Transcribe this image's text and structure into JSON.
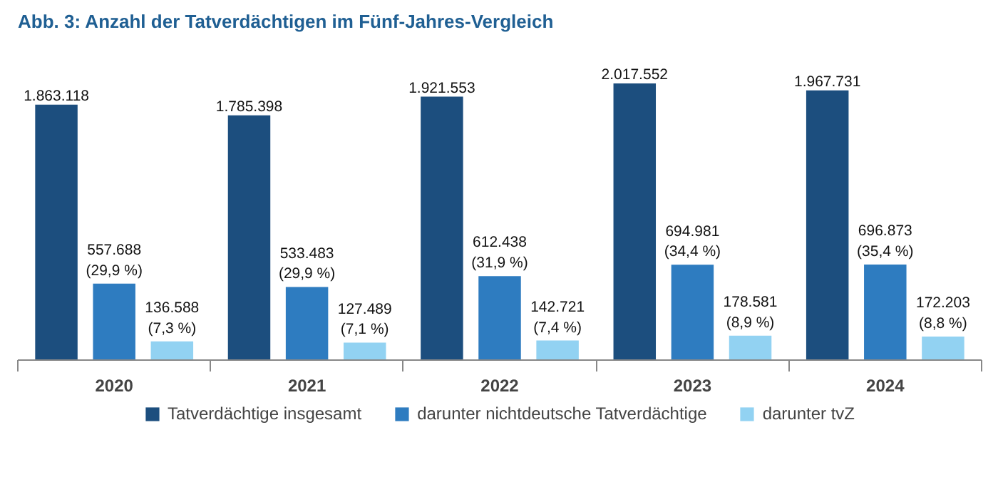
{
  "chart_data": {
    "type": "bar",
    "title": "Abb. 3: Anzahl der Tatverdächtigen im Fünf-Jahres-Vergleich",
    "categories": [
      "2020",
      "2021",
      "2022",
      "2023",
      "2024"
    ],
    "series": [
      {
        "name": "Tatverdächtige insgesamt",
        "color": "#1c4e7e",
        "values": [
          1863118,
          1785398,
          1921553,
          2017552,
          1967731
        ],
        "value_labels": [
          "1.863.118",
          "1.785.398",
          "1.921.553",
          "2.017.552",
          "1.967.731"
        ]
      },
      {
        "name": "darunter nichtdeutsche Tatverdächtige",
        "color": "#2e7cc0",
        "values": [
          557688,
          533483,
          612438,
          694981,
          696873
        ],
        "value_labels": [
          "557.688\n(29,9 %)",
          "533.483\n(29,9 %)",
          "612.438\n(31,9 %)",
          "694.981\n(34,4 %)",
          "696.873\n(35,4 %)"
        ]
      },
      {
        "name": "darunter tvZ",
        "color": "#92d2f2",
        "values": [
          136588,
          127489,
          142721,
          178581,
          172203
        ],
        "value_labels": [
          "136.588\n(7,3 %)",
          "127.489\n(7,1 %)",
          "142.721\n(7,4 %)",
          "178.581\n(8,9 %)",
          "172.203\n(8,8 %)"
        ]
      }
    ],
    "legend": "bottom",
    "grid": false,
    "tick_labels": "x"
  }
}
